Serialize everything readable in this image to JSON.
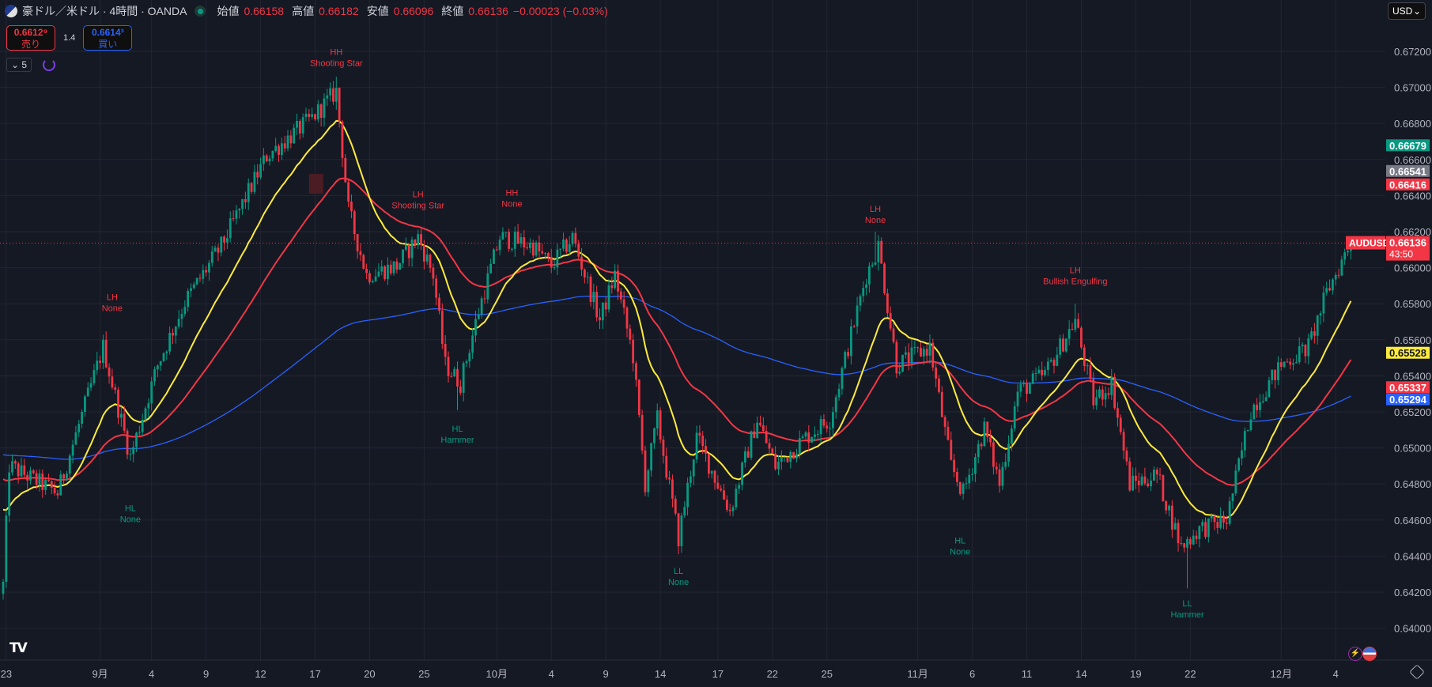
{
  "header": {
    "title": "豪ドル／米ドル · 4時間 · OANDA",
    "open_label": "始値",
    "open": "0.66158",
    "high_label": "高値",
    "high": "0.66182",
    "low_label": "安値",
    "low": "0.66096",
    "close_label": "終値",
    "close": "0.66136",
    "change": "−0.00023 (−0.03%)"
  },
  "trade": {
    "sell_price": "0.6612⁹",
    "sell_label": "売り",
    "spread": "1.4",
    "buy_price": "0.6614³",
    "buy_label": "買い"
  },
  "indicator_toggle": "5",
  "currency_select": "USD",
  "colors": {
    "bg": "#151924",
    "grid": "#232632",
    "up": "#089981",
    "down": "#f23645",
    "ma_fast": "#ffeb3b",
    "ma_mid": "#f23645",
    "ma_slow": "#2962ff"
  },
  "chart_data": {
    "type": "candlestick",
    "symbol": "AUDUSD",
    "ylim": [
      0.639,
      0.673
    ],
    "y_ticks": [
      "0.67200",
      "0.67000",
      "0.66800",
      "0.66600",
      "0.66400",
      "0.66200",
      "0.66000",
      "0.65800",
      "0.65600",
      "0.65400",
      "0.65200",
      "0.65000",
      "0.64800",
      "0.64600",
      "0.64400",
      "0.64200",
      "0.64000"
    ],
    "bar_count": 446,
    "x_ticks": [
      {
        "bar": 1,
        "label": "23"
      },
      {
        "bar": 32,
        "label": "9月"
      },
      {
        "bar": 49,
        "label": "4"
      },
      {
        "bar": 67,
        "label": "9"
      },
      {
        "bar": 85,
        "label": "12"
      },
      {
        "bar": 103,
        "label": "17"
      },
      {
        "bar": 121,
        "label": "20"
      },
      {
        "bar": 139,
        "label": "25"
      },
      {
        "bar": 163,
        "label": "10月"
      },
      {
        "bar": 181,
        "label": "4"
      },
      {
        "bar": 199,
        "label": "9"
      },
      {
        "bar": 217,
        "label": "14"
      },
      {
        "bar": 236,
        "label": "17"
      },
      {
        "bar": 254,
        "label": "22"
      },
      {
        "bar": 272,
        "label": "25"
      },
      {
        "bar": 302,
        "label": "11月"
      },
      {
        "bar": 320,
        "label": "6"
      },
      {
        "bar": 338,
        "label": "11"
      },
      {
        "bar": 356,
        "label": "14"
      },
      {
        "bar": 374,
        "label": "19"
      },
      {
        "bar": 392,
        "label": "22"
      },
      {
        "bar": 422,
        "label": "12月"
      },
      {
        "bar": 440,
        "label": "4"
      }
    ],
    "price_path": [
      [
        0,
        0.6424
      ],
      [
        2,
        0.649
      ],
      [
        18,
        0.6475
      ],
      [
        33,
        0.6556
      ],
      [
        42,
        0.6495
      ],
      [
        51,
        0.6546
      ],
      [
        60,
        0.6581
      ],
      [
        72,
        0.6612
      ],
      [
        87,
        0.6662
      ],
      [
        102,
        0.6683
      ],
      [
        110,
        0.6698
      ],
      [
        114,
        0.6632
      ],
      [
        120,
        0.6596
      ],
      [
        130,
        0.6601
      ],
      [
        137,
        0.6617
      ],
      [
        142,
        0.6596
      ],
      [
        146,
        0.6546
      ],
      [
        151,
        0.6536
      ],
      [
        157,
        0.6576
      ],
      [
        164,
        0.6617
      ],
      [
        175,
        0.6612
      ],
      [
        181,
        0.6601
      ],
      [
        188,
        0.6617
      ],
      [
        197,
        0.6571
      ],
      [
        202,
        0.6596
      ],
      [
        208,
        0.6551
      ],
      [
        212,
        0.648
      ],
      [
        216,
        0.6516
      ],
      [
        223,
        0.645
      ],
      [
        229,
        0.6506
      ],
      [
        240,
        0.6465
      ],
      [
        249,
        0.6516
      ],
      [
        255,
        0.649
      ],
      [
        265,
        0.6506
      ],
      [
        273,
        0.6516
      ],
      [
        285,
        0.6596
      ],
      [
        289,
        0.6612
      ],
      [
        295,
        0.6546
      ],
      [
        306,
        0.6556
      ],
      [
        313,
        0.649
      ],
      [
        317,
        0.6475
      ],
      [
        324,
        0.6511
      ],
      [
        329,
        0.648
      ],
      [
        335,
        0.6531
      ],
      [
        344,
        0.6541
      ],
      [
        354,
        0.6571
      ],
      [
        360,
        0.6526
      ],
      [
        366,
        0.6536
      ],
      [
        372,
        0.648
      ],
      [
        381,
        0.6485
      ],
      [
        389,
        0.6445
      ],
      [
        395,
        0.6455
      ],
      [
        404,
        0.646
      ],
      [
        412,
        0.6521
      ],
      [
        422,
        0.6546
      ],
      [
        431,
        0.6556
      ],
      [
        437,
        0.6586
      ],
      [
        445,
        0.6614
      ]
    ],
    "spikes": [
      [
        110,
        "high",
        0.6706
      ],
      [
        150,
        "low",
        0.6521
      ],
      [
        223,
        "low",
        0.6441
      ],
      [
        288,
        "high",
        0.662
      ],
      [
        391,
        "low",
        0.6422
      ],
      [
        354,
        "high",
        0.658
      ]
    ],
    "ma_periods": [
      20,
      50,
      200
    ],
    "ma_start": [
      0.647,
      0.6485,
      0.6497
    ],
    "annotations": [
      {
        "bar": 36,
        "price": 0.6582,
        "line1": "LH",
        "line2": "None",
        "kind": "high"
      },
      {
        "bar": 42,
        "price": 0.6465,
        "line1": "HL",
        "line2": "None",
        "kind": "low"
      },
      {
        "bar": 110,
        "price": 0.6718,
        "line1": "HH",
        "line2": "Shooting Star",
        "kind": "high"
      },
      {
        "bar": 137,
        "price": 0.6639,
        "line1": "LH",
        "line2": "Shooting Star",
        "kind": "high"
      },
      {
        "bar": 168,
        "price": 0.664,
        "line1": "HH",
        "line2": "None",
        "kind": "high"
      },
      {
        "bar": 150,
        "price": 0.6509,
        "line1": "HL",
        "line2": "Hammer",
        "kind": "low"
      },
      {
        "bar": 223,
        "price": 0.643,
        "line1": "LL",
        "line2": "None",
        "kind": "low"
      },
      {
        "bar": 288,
        "price": 0.6631,
        "line1": "LH",
        "line2": "None",
        "kind": "high"
      },
      {
        "bar": 316,
        "price": 0.6447,
        "line1": "HL",
        "line2": "None",
        "kind": "low"
      },
      {
        "bar": 354,
        "price": 0.6597,
        "line1": "LH",
        "line2": "Bullish Engulfing",
        "kind": "high"
      },
      {
        "bar": 391,
        "price": 0.6412,
        "line1": "LL",
        "line2": "Hammer",
        "kind": "low"
      }
    ],
    "price_labels": [
      {
        "value": "0.66679",
        "price": 0.66679,
        "color": "#089981",
        "text": "#ffffff"
      },
      {
        "value": "0.66541",
        "price": 0.66541,
        "color": "#787b86",
        "text": "#ffffff"
      },
      {
        "value": "0.66416",
        "price": 0.66416,
        "color": "#f23645",
        "text": "#ffffff"
      },
      {
        "value": "0.65528",
        "price": 0.65528,
        "color": "#ffeb3b",
        "text": "#131722"
      },
      {
        "value": "0.65337",
        "price": 0.65337,
        "color": "#f23645",
        "text": "#ffffff"
      },
      {
        "value": "0.65294",
        "price": 0.65294,
        "color": "#2962ff",
        "text": "#ffffff"
      }
    ],
    "last_price": {
      "value": "0.66136",
      "price": 0.66136,
      "countdown": "43:50",
      "symbol_tag": "AUDUSD"
    }
  }
}
